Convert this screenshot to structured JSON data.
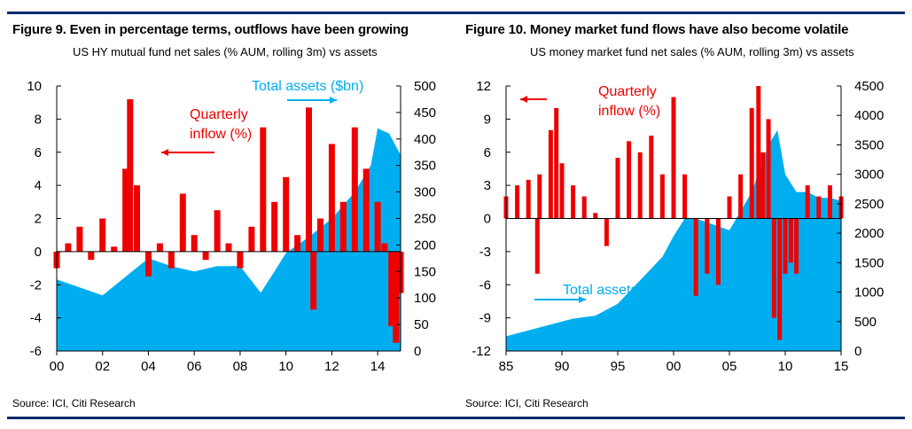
{
  "charts": [
    {
      "figure_title": "Figure 9. Even in percentage terms, outflows have been growing",
      "subtitle": "US HY mutual fund net sales (% AUM, rolling 3m) vs assets",
      "source": "Source: ICI, Citi Research",
      "annotation_flow": [
        "Quarterly",
        "inflow (%)"
      ],
      "annotation_assets": "Total assets ($bn)"
    },
    {
      "figure_title": "Figure 10. Money market fund flows have also become volatile",
      "subtitle": "US money market fund net sales (% AUM, rolling 3m) vs assets",
      "source": "Source: ICI, Citi Research",
      "annotation_flow": [
        "Quarterly",
        "inflow (%)"
      ],
      "annotation_assets": "Total assets ($bn)"
    }
  ],
  "colors": {
    "flow_bars": "#ee0000",
    "assets_area": "#00aeef",
    "rule": "#0a2a6b"
  },
  "chart_data": [
    {
      "type": "bar",
      "series": [
        {
          "name": "Quarterly inflow (%)",
          "axis": "left",
          "type": "bar",
          "x": [
            2000.0,
            2000.5,
            2001.0,
            2001.5,
            2002.0,
            2002.5,
            2003.0,
            2003.2,
            2003.5,
            2004.0,
            2004.5,
            2005.0,
            2005.5,
            2006.0,
            2006.5,
            2007.0,
            2007.5,
            2008.0,
            2008.5,
            2009.0,
            2009.5,
            2010.0,
            2010.5,
            2011.0,
            2011.2,
            2011.5,
            2012.0,
            2012.5,
            2013.0,
            2013.5,
            2014.0,
            2014.3,
            2014.6,
            2014.8,
            2015.0
          ],
          "values": [
            -1,
            0.5,
            1.5,
            -0.5,
            2,
            0.3,
            5,
            9.2,
            4,
            -1.5,
            0.5,
            -1,
            3.5,
            1,
            -0.5,
            2.5,
            0.5,
            -1,
            1.5,
            7.5,
            3,
            4.5,
            1,
            8.7,
            -3.5,
            2,
            6.5,
            3,
            7.5,
            5,
            3,
            0.5,
            -4.5,
            -5.5,
            -2.5
          ]
        },
        {
          "name": "Total assets ($bn)",
          "axis": "right",
          "type": "area",
          "x": [
            2000,
            2001,
            2002,
            2003,
            2004,
            2005,
            2006,
            2007,
            2008,
            2008.9,
            2009.5,
            2010,
            2011,
            2012,
            2013,
            2013.7,
            2014,
            2014.5,
            2015
          ],
          "values": [
            135,
            120,
            105,
            140,
            175,
            160,
            150,
            160,
            160,
            110,
            150,
            185,
            215,
            250,
            300,
            350,
            420,
            410,
            370
          ]
        }
      ],
      "x_tick_labels": [
        "00",
        "02",
        "04",
        "06",
        "08",
        "10",
        "12",
        "14"
      ],
      "x_tick_values": [
        2000,
        2002,
        2004,
        2006,
        2008,
        2010,
        2012,
        2014
      ],
      "xlim": [
        2000,
        2015
      ],
      "left_axis": {
        "ylim": [
          -6,
          10
        ],
        "ticks": [
          "10",
          "8",
          "6",
          "4",
          "2",
          "0",
          "-2",
          "-4",
          "-6"
        ]
      },
      "right_axis": {
        "ylim": [
          0,
          500
        ],
        "ticks": [
          "500",
          "450",
          "400",
          "350",
          "300",
          "250",
          "200",
          "150",
          "100",
          "50",
          "0"
        ]
      }
    },
    {
      "type": "bar",
      "series": [
        {
          "name": "Quarterly inflow (%)",
          "axis": "left",
          "type": "bar",
          "x": [
            1985,
            1986,
            1987,
            1987.8,
            1988,
            1989,
            1989.5,
            1990,
            1991,
            1992,
            1993,
            1994,
            1995,
            1996,
            1997,
            1998,
            1999,
            2000,
            2001,
            2002,
            2003,
            2004,
            2005,
            2006,
            2007,
            2007.6,
            2008,
            2008.5,
            2009,
            2009.5,
            2010,
            2010.5,
            2011,
            2012,
            2013,
            2014,
            2015
          ],
          "values": [
            2,
            3,
            3.5,
            -5,
            4,
            8,
            10,
            5,
            3,
            2,
            0.5,
            -2.5,
            5.5,
            7,
            6,
            7.5,
            4,
            11,
            4,
            -7,
            -5,
            -6,
            2,
            4,
            10,
            12,
            6,
            9,
            -9,
            -11,
            -5,
            -4,
            -5,
            3,
            2,
            3,
            2
          ]
        },
        {
          "name": "Total assets ($bn)",
          "axis": "right",
          "type": "area",
          "x": [
            1985,
            1987,
            1989,
            1991,
            1993,
            1995,
            1997,
            1999,
            2000,
            2001,
            2002,
            2005,
            2007,
            2008.5,
            2009.3,
            2010,
            2011,
            2012,
            2013,
            2014,
            2015
          ],
          "values": [
            250,
            350,
            450,
            550,
            600,
            800,
            1200,
            1600,
            1950,
            2250,
            2250,
            2050,
            2700,
            3500,
            3750,
            3000,
            2700,
            2700,
            2600,
            2600,
            2550
          ]
        }
      ],
      "x_tick_labels": [
        "85",
        "90",
        "95",
        "00",
        "05",
        "10",
        "15"
      ],
      "x_tick_values": [
        1985,
        1990,
        1995,
        2000,
        2005,
        2010,
        2015
      ],
      "xlim": [
        1985,
        2015
      ],
      "left_axis": {
        "ylim": [
          -12,
          12
        ],
        "ticks": [
          "12",
          "9",
          "6",
          "3",
          "0",
          "-3",
          "-6",
          "-9",
          "-12"
        ]
      },
      "right_axis": {
        "ylim": [
          0,
          4500
        ],
        "ticks": [
          "4500",
          "4000",
          "3500",
          "3000",
          "2500",
          "2000",
          "1500",
          "1000",
          "500",
          "0"
        ]
      }
    }
  ]
}
